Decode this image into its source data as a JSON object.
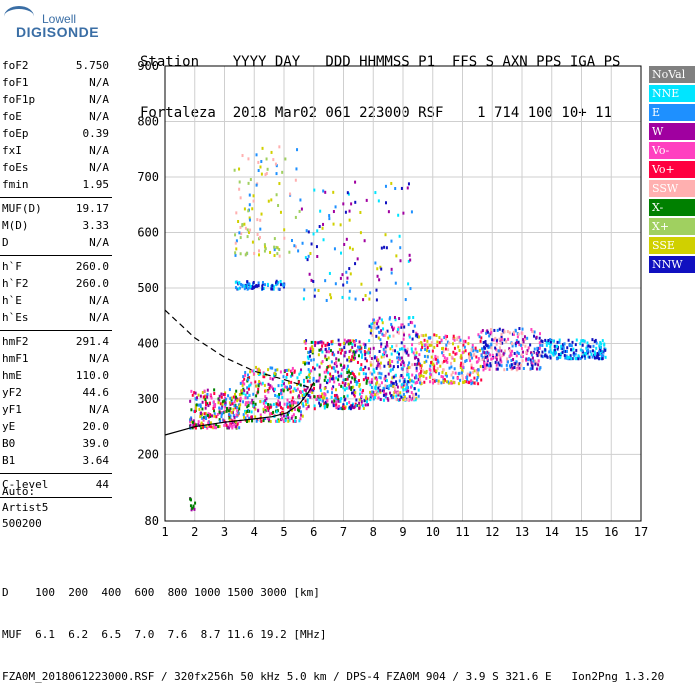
{
  "logo": {
    "top": "Lowell",
    "main": "DIGISONDE"
  },
  "header": {
    "row1": "Station    YYYY DAY   DDD HHMMSS P1  FFS S AXN PPS IGA PS",
    "row2": "Fortaleza  2018 Mar02 061 223000 RSF    1 714 100 10+ 11"
  },
  "params": [
    {
      "label": "foF2",
      "value": "5.750"
    },
    {
      "label": "foF1",
      "value": "N/A"
    },
    {
      "label": "foF1p",
      "value": "N/A"
    },
    {
      "label": "foE",
      "value": "N/A"
    },
    {
      "label": "foEp",
      "value": "0.39"
    },
    {
      "label": "fxI",
      "value": "N/A"
    },
    {
      "label": "foEs",
      "value": "N/A"
    },
    {
      "label": "fmin",
      "value": "1.95",
      "sep": true
    },
    {
      "label": "MUF(D)",
      "value": "19.17"
    },
    {
      "label": "M(D)",
      "value": "3.33"
    },
    {
      "label": "D",
      "value": "N/A",
      "sep": true
    },
    {
      "label": "h`F",
      "value": "260.0"
    },
    {
      "label": "h`F2",
      "value": "260.0"
    },
    {
      "label": "h`E",
      "value": "N/A"
    },
    {
      "label": "h`Es",
      "value": "N/A",
      "sep": true
    },
    {
      "label": "hmF2",
      "value": "291.4"
    },
    {
      "label": "hmF1",
      "value": "N/A"
    },
    {
      "label": "hmE",
      "value": "110.0"
    },
    {
      "label": "yF2",
      "value": "44.6"
    },
    {
      "label": "yF1",
      "value": "N/A"
    },
    {
      "label": "yE",
      "value": "20.0"
    },
    {
      "label": "B0",
      "value": "39.0"
    },
    {
      "label": "B1",
      "value": "3.64",
      "sep": true
    },
    {
      "label": "C-level",
      "value": "44",
      "sep": true
    }
  ],
  "auto": {
    "line1": "Auto:",
    "line2": "Artist5",
    "line3": "500200"
  },
  "legend": [
    {
      "label": "NoVal",
      "color": "#808080"
    },
    {
      "label": "NNE",
      "color": "#00e5ff"
    },
    {
      "label": "E",
      "color": "#1e90ff"
    },
    {
      "label": "W",
      "color": "#a000a0"
    },
    {
      "label": "Vo-",
      "color": "#ff40c0"
    },
    {
      "label": "Vo+",
      "color": "#ff0040"
    },
    {
      "label": "SSW",
      "color": "#ffb0b0"
    },
    {
      "label": "X-",
      "color": "#008000"
    },
    {
      "label": "X+",
      "color": "#a0d060"
    },
    {
      "label": "SSE",
      "color": "#d0d000"
    },
    {
      "label": "NNW",
      "color": "#1010c0"
    }
  ],
  "footer": {
    "d_row": "D    100  200  400  600  800 1000 1500 3000 [km]",
    "muf_row": "MUF  6.1  6.2  6.5  7.0  7.6  8.7 11.6 19.2 [MHz]",
    "info_row": "FZA0M_2018061223000.RSF / 320fx256h 50 kHz 5.0 km / DPS-4 FZA0M 904 / 3.9 S 321.6 E   Ion2Png 1.3.20"
  },
  "chart_data": {
    "type": "scatter",
    "xlim": [
      1,
      17
    ],
    "ylim": [
      80,
      900
    ],
    "x_ticks": [
      "1",
      "2",
      "3",
      "4",
      "5",
      "6",
      "7",
      "8",
      "9",
      "10",
      "11",
      "12",
      "13",
      "14",
      "15",
      "16",
      "17"
    ],
    "y_ticks": [
      "80",
      "200",
      "300",
      "400",
      "500",
      "600",
      "700",
      "800",
      "900"
    ],
    "grid": true,
    "clusters": [
      {
        "x": [
          1.8,
          3.5
        ],
        "y": [
          250,
          320
        ],
        "n": 260,
        "colors": [
          "#ff0040",
          "#a000a0",
          "#1e90ff",
          "#ff40c0",
          "#d0d000",
          "#008000"
        ]
      },
      {
        "x": [
          3.5,
          5.6
        ],
        "y": [
          262,
          360
        ],
        "n": 320,
        "colors": [
          "#ff0040",
          "#ff40c0",
          "#1e90ff",
          "#00e5ff",
          "#a000a0",
          "#d0d000",
          "#008000"
        ]
      },
      {
        "x": [
          5.6,
          7.8
        ],
        "y": [
          285,
          410
        ],
        "n": 420,
        "colors": [
          "#ff0040",
          "#ff40c0",
          "#1e90ff",
          "#00e5ff",
          "#a000a0",
          "#1010c0",
          "#d0d000",
          "#008000"
        ]
      },
      {
        "x": [
          7.8,
          9.5
        ],
        "y": [
          300,
          450
        ],
        "n": 380,
        "colors": [
          "#1e90ff",
          "#00e5ff",
          "#ffb0b0",
          "#d0d000",
          "#ff40c0",
          "#1010c0",
          "#a000a0"
        ]
      },
      {
        "x": [
          9.5,
          11.6
        ],
        "y": [
          330,
          420
        ],
        "n": 280,
        "colors": [
          "#ffb0b0",
          "#ff40c0",
          "#d0d000",
          "#1e90ff",
          "#ff0040"
        ]
      },
      {
        "x": [
          11.6,
          13.6
        ],
        "y": [
          355,
          430
        ],
        "n": 260,
        "colors": [
          "#1010c0",
          "#1e90ff",
          "#a000a0",
          "#ff40c0",
          "#ffb0b0"
        ]
      },
      {
        "x": [
          13.6,
          15.8
        ],
        "y": [
          375,
          410
        ],
        "n": 190,
        "colors": [
          "#1010c0",
          "#1e90ff",
          "#00e5ff"
        ]
      },
      {
        "x": [
          3.3,
          5.0
        ],
        "y": [
          500,
          515
        ],
        "n": 70,
        "colors": [
          "#1e90ff",
          "#00e5ff",
          "#1010c0"
        ]
      },
      {
        "x": [
          3.3,
          5.5
        ],
        "y": [
          560,
          760
        ],
        "n": 110,
        "colors": [
          "#d0d000",
          "#a0d060",
          "#ffb0b0",
          "#1e90ff"
        ]
      },
      {
        "x": [
          5.5,
          9.3
        ],
        "y": [
          480,
          700
        ],
        "n": 120,
        "colors": [
          "#1010c0",
          "#a000a0",
          "#1e90ff",
          "#00e5ff",
          "#d0d000"
        ]
      },
      {
        "x": [
          1.8,
          2.0
        ],
        "y": [
          100,
          130
        ],
        "n": 10,
        "colors": [
          "#a000a0",
          "#008000"
        ]
      }
    ],
    "curve_dashed": {
      "x": [
        1.0,
        2.0,
        3.0,
        4.0,
        5.0,
        5.6,
        5.9
      ],
      "y": [
        460,
        410,
        375,
        350,
        335,
        325,
        320
      ]
    },
    "curve_solid": {
      "x": [
        1.0,
        2.0,
        3.0,
        4.0,
        4.6,
        5.1,
        5.5,
        5.8,
        6.0
      ],
      "y": [
        235,
        250,
        258,
        264,
        268,
        275,
        290,
        310,
        330
      ]
    }
  }
}
